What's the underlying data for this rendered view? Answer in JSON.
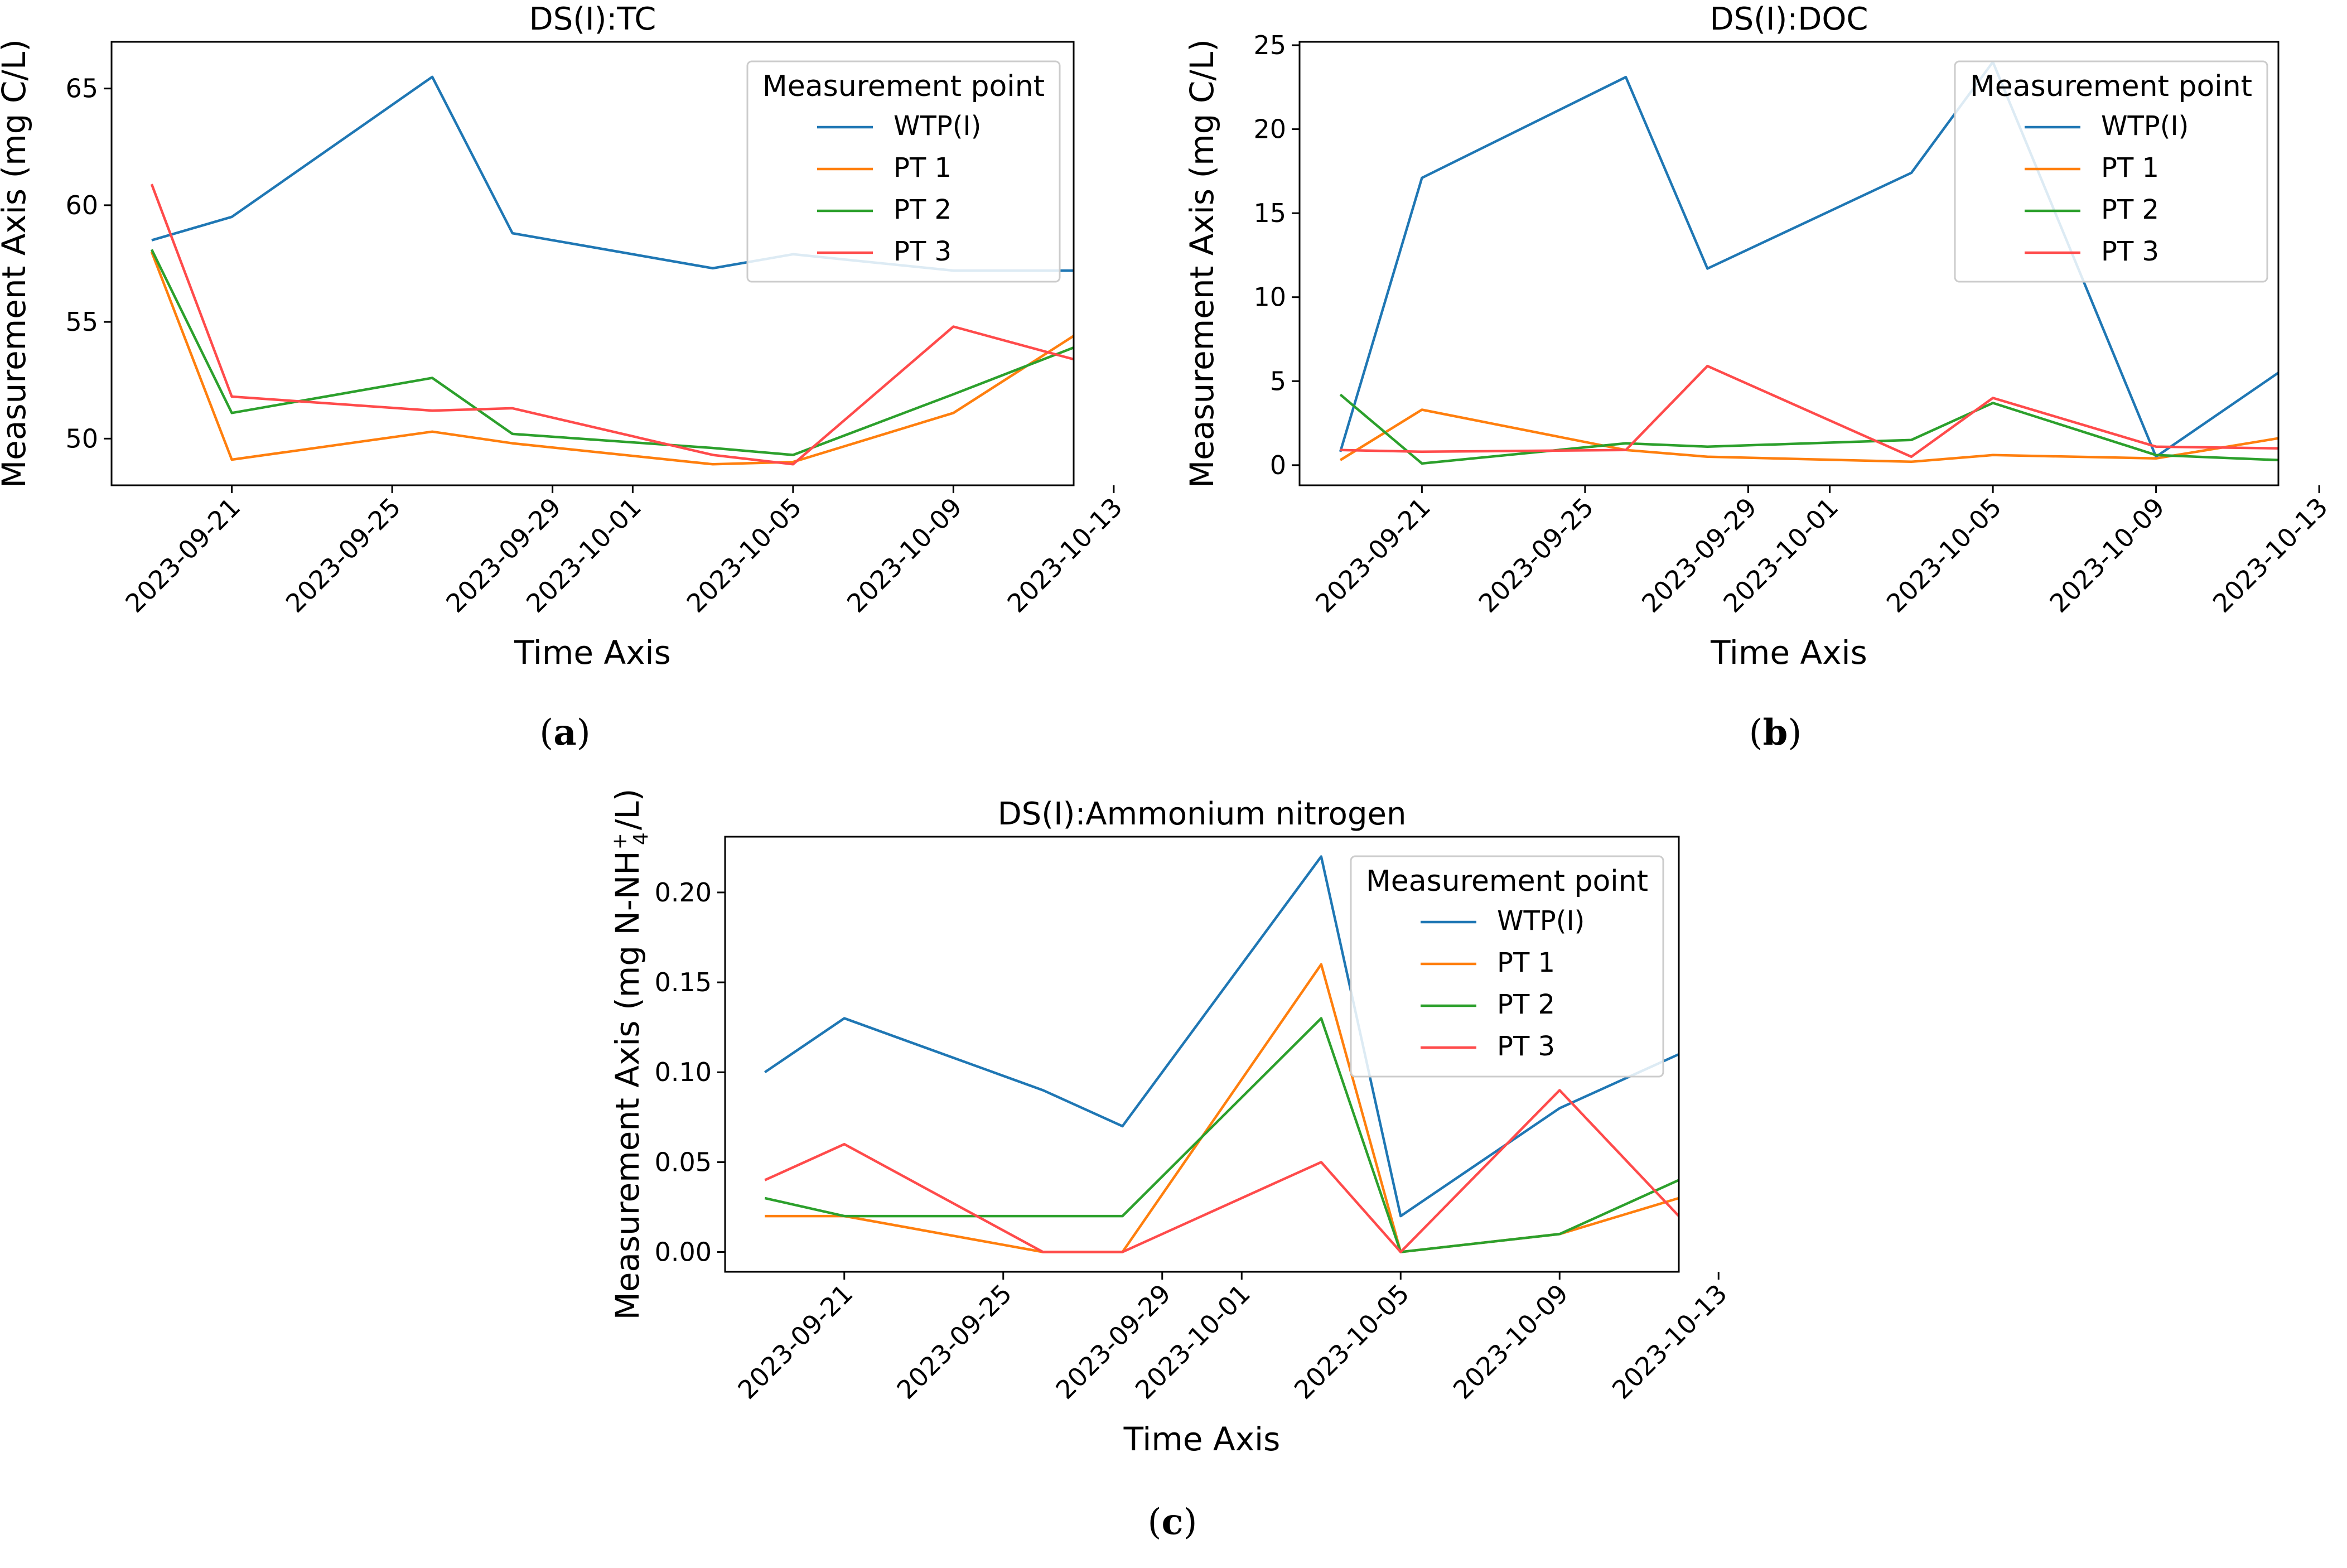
{
  "chart_data": [
    {
      "type": "line",
      "caption": "a",
      "title": "DS(I):TC",
      "xlabel": "Time Axis",
      "ylabel": "Measurement Axis (mg C/L)",
      "ylim": [
        48.0,
        67.0
      ],
      "yticks": [
        50,
        55,
        60,
        65
      ],
      "xlim": [
        "2023-09-18",
        "2023-10-12"
      ],
      "xticks": [
        "2023-09-21",
        "2023-09-25",
        "2023-09-29",
        "2023-10-01",
        "2023-10-05",
        "2023-10-09",
        "2023-10-13"
      ],
      "x": [
        "2023-09-19",
        "2023-09-21",
        "2023-09-26",
        "2023-09-28",
        "2023-10-03",
        "2023-10-05",
        "2023-10-09",
        "2023-10-12"
      ],
      "legend": {
        "title": "Measurement point",
        "position": "top-right"
      },
      "series": [
        {
          "name": "WTP(I)",
          "color": "#1f77b4",
          "values": [
            58.5,
            59.5,
            65.5,
            58.8,
            57.3,
            57.9,
            57.2,
            57.2
          ]
        },
        {
          "name": "PT 1",
          "color": "#ff7f0e",
          "values": [
            58.0,
            49.1,
            50.3,
            49.8,
            48.9,
            49.0,
            51.1,
            54.4
          ]
        },
        {
          "name": "PT 2",
          "color": "#2ca02c",
          "values": [
            58.1,
            51.1,
            52.6,
            50.2,
            49.6,
            49.3,
            51.9,
            53.9
          ]
        },
        {
          "name": "PT 3",
          "color": "#ff4b4b",
          "values": [
            60.9,
            51.8,
            51.2,
            51.3,
            49.3,
            48.9,
            54.8,
            53.4
          ]
        }
      ]
    },
    {
      "type": "line",
      "caption": "b",
      "title": "DS(I):DOC",
      "xlabel": "Time Axis",
      "ylabel": "Measurement Axis (mg C/L)",
      "ylim": [
        -1.2,
        25.2
      ],
      "yticks": [
        0,
        5,
        10,
        15,
        20,
        25
      ],
      "xlim": [
        "2023-09-18",
        "2023-10-12"
      ],
      "xticks": [
        "2023-09-21",
        "2023-09-25",
        "2023-09-29",
        "2023-10-01",
        "2023-10-05",
        "2023-10-09",
        "2023-10-13"
      ],
      "x": [
        "2023-09-19",
        "2023-09-21",
        "2023-09-26",
        "2023-09-28",
        "2023-10-03",
        "2023-10-05",
        "2023-10-09",
        "2023-10-12"
      ],
      "legend": {
        "title": "Measurement point",
        "position": "top-right"
      },
      "series": [
        {
          "name": "WTP(I)",
          "color": "#1f77b4",
          "values": [
            0.8,
            17.1,
            23.1,
            11.7,
            17.4,
            24.0,
            0.5,
            5.5
          ]
        },
        {
          "name": "PT 1",
          "color": "#ff7f0e",
          "values": [
            0.3,
            3.3,
            0.9,
            0.5,
            0.2,
            0.6,
            0.4,
            1.6
          ]
        },
        {
          "name": "PT 2",
          "color": "#2ca02c",
          "values": [
            4.2,
            0.1,
            1.3,
            1.1,
            1.5,
            3.7,
            0.6,
            0.3
          ]
        },
        {
          "name": "PT 3",
          "color": "#ff4b4b",
          "values": [
            0.9,
            0.8,
            0.9,
            5.9,
            0.5,
            4.0,
            1.1,
            1.0
          ]
        }
      ]
    },
    {
      "type": "line",
      "caption": "c",
      "title": "DS(I):Ammonium nitrogen",
      "xlabel": "Time Axis",
      "ylabel_pre": "Measurement Axis (mg N-NH",
      "ylabel_sub": "4",
      "ylabel_sup": "+",
      "ylabel_post": "/L)",
      "ylim": [
        -0.011,
        0.231
      ],
      "yticks": [
        "0.00",
        "0.05",
        "0.10",
        "0.15",
        "0.20"
      ],
      "xlim": [
        "2023-09-18",
        "2023-10-12"
      ],
      "xticks": [
        "2023-09-21",
        "2023-09-25",
        "2023-09-29",
        "2023-10-01",
        "2023-10-05",
        "2023-10-09",
        "2023-10-13"
      ],
      "x": [
        "2023-09-19",
        "2023-09-21",
        "2023-09-26",
        "2023-09-28",
        "2023-10-03",
        "2023-10-05",
        "2023-10-09",
        "2023-10-12"
      ],
      "legend": {
        "title": "Measurement point",
        "position": "top-right"
      },
      "series": [
        {
          "name": "WTP(I)",
          "color": "#1f77b4",
          "values": [
            0.1,
            0.13,
            0.09,
            0.07,
            0.22,
            0.02,
            0.08,
            0.11
          ]
        },
        {
          "name": "PT 1",
          "color": "#ff7f0e",
          "values": [
            0.02,
            0.02,
            0.0,
            0.0,
            0.16,
            0.0,
            0.01,
            0.03
          ]
        },
        {
          "name": "PT 2",
          "color": "#2ca02c",
          "values": [
            0.03,
            0.02,
            0.02,
            0.02,
            0.13,
            0.0,
            0.01,
            0.04
          ]
        },
        {
          "name": "PT 3",
          "color": "#ff4b4b",
          "values": [
            0.04,
            0.06,
            0.0,
            0.0,
            0.05,
            0.0,
            0.09,
            0.02
          ]
        }
      ]
    }
  ]
}
